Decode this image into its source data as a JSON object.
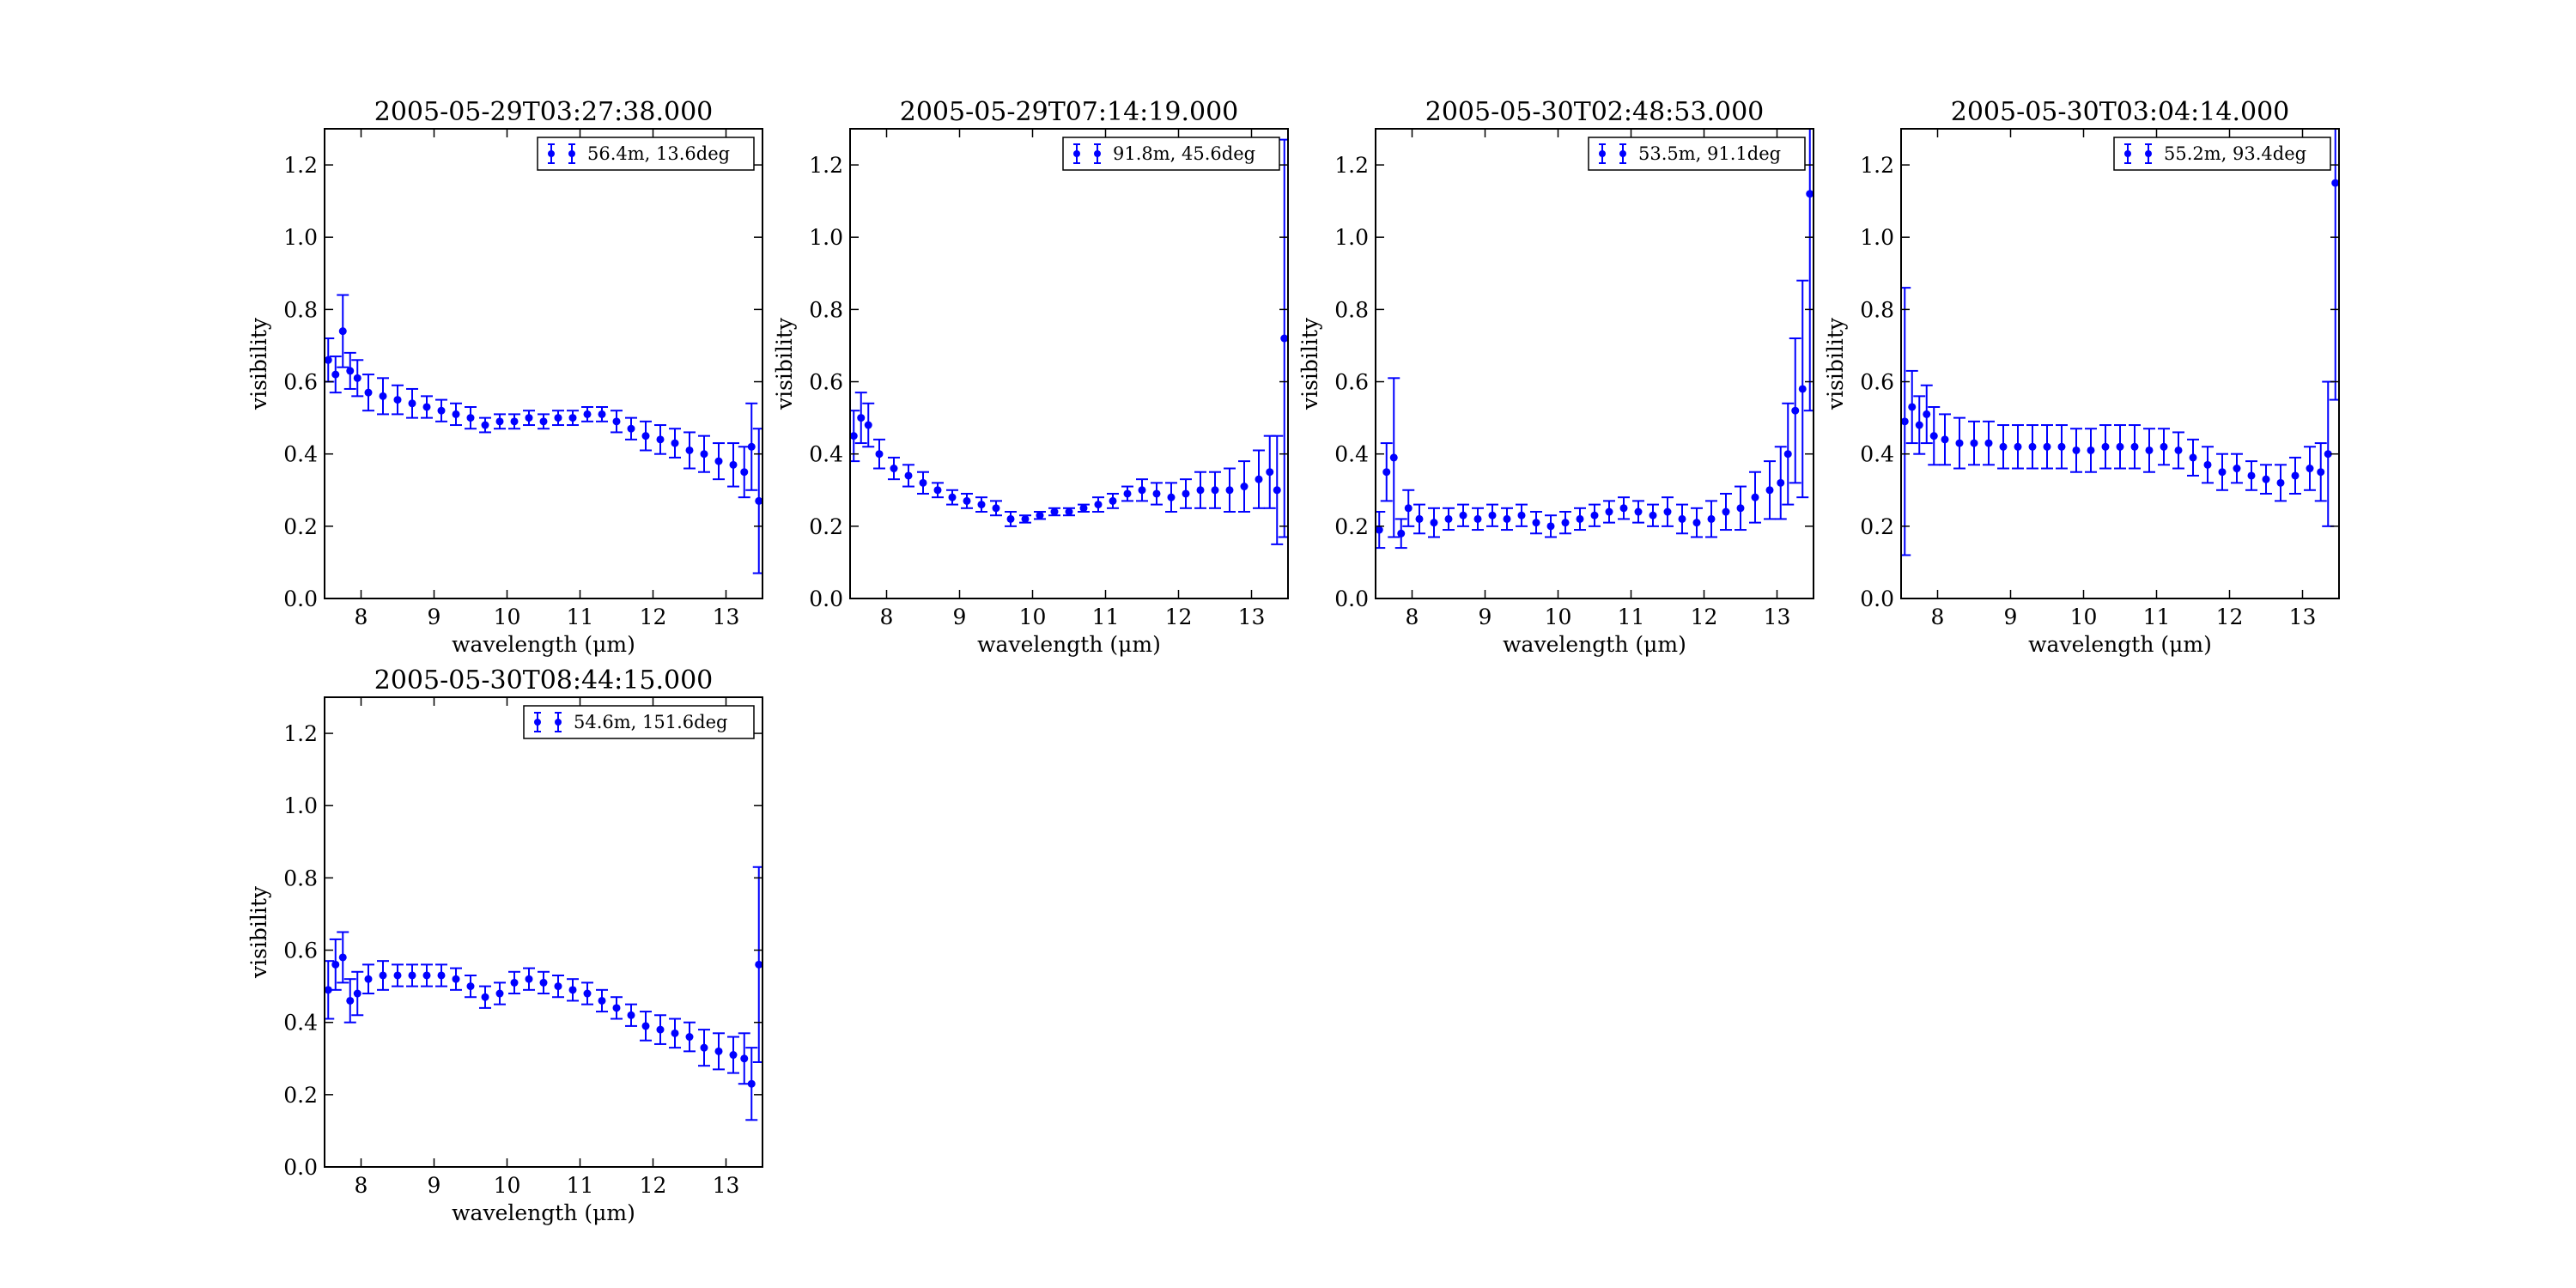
{
  "figure": {
    "series_color": "#0000ff"
  },
  "chart_data": [
    {
      "type": "scatter",
      "title": "2005-05-29T03:27:38.000",
      "xlabel": "wavelength (μm)",
      "ylabel": "visibility",
      "xlim": [
        7.5,
        13.5
      ],
      "ylim": [
        0.0,
        1.3
      ],
      "xticks": [
        "8",
        "9",
        "10",
        "11",
        "12",
        "13"
      ],
      "yticks": [
        "0.0",
        "0.2",
        "0.4",
        "0.6",
        "0.8",
        "1.0",
        "1.2"
      ],
      "grid": false,
      "legend": "top-right",
      "series": [
        {
          "name": "56.4m, 13.6deg",
          "x": [
            7.55,
            7.65,
            7.75,
            7.85,
            7.95,
            8.1,
            8.3,
            8.5,
            8.7,
            8.9,
            9.1,
            9.3,
            9.5,
            9.7,
            9.9,
            10.1,
            10.3,
            10.5,
            10.7,
            10.9,
            11.1,
            11.3,
            11.5,
            11.7,
            11.9,
            12.1,
            12.3,
            12.5,
            12.7,
            12.9,
            13.1,
            13.25,
            13.35,
            13.45
          ],
          "y": [
            0.66,
            0.62,
            0.74,
            0.63,
            0.61,
            0.57,
            0.56,
            0.55,
            0.54,
            0.53,
            0.52,
            0.51,
            0.5,
            0.48,
            0.49,
            0.49,
            0.5,
            0.49,
            0.5,
            0.5,
            0.51,
            0.51,
            0.49,
            0.47,
            0.45,
            0.44,
            0.43,
            0.41,
            0.4,
            0.38,
            0.37,
            0.35,
            0.42,
            0.27
          ],
          "yerr": [
            0.06,
            0.05,
            0.1,
            0.05,
            0.05,
            0.05,
            0.05,
            0.04,
            0.04,
            0.03,
            0.03,
            0.03,
            0.03,
            0.02,
            0.02,
            0.02,
            0.02,
            0.02,
            0.02,
            0.02,
            0.02,
            0.02,
            0.03,
            0.03,
            0.04,
            0.04,
            0.04,
            0.05,
            0.05,
            0.05,
            0.06,
            0.07,
            0.12,
            0.2
          ]
        }
      ]
    },
    {
      "type": "scatter",
      "title": "2005-05-29T07:14:19.000",
      "xlabel": "wavelength (μm)",
      "ylabel": "visibility",
      "xlim": [
        7.5,
        13.5
      ],
      "ylim": [
        0.0,
        1.3
      ],
      "xticks": [
        "8",
        "9",
        "10",
        "11",
        "12",
        "13"
      ],
      "yticks": [
        "0.0",
        "0.2",
        "0.4",
        "0.6",
        "0.8",
        "1.0",
        "1.2"
      ],
      "grid": false,
      "legend": "top-right",
      "series": [
        {
          "name": "91.8m, 45.6deg",
          "x": [
            7.55,
            7.65,
            7.75,
            7.9,
            8.1,
            8.3,
            8.5,
            8.7,
            8.9,
            9.1,
            9.3,
            9.5,
            9.7,
            9.9,
            10.1,
            10.3,
            10.5,
            10.7,
            10.9,
            11.1,
            11.3,
            11.5,
            11.7,
            11.9,
            12.1,
            12.3,
            12.5,
            12.7,
            12.9,
            13.1,
            13.25,
            13.35,
            13.45
          ],
          "y": [
            0.45,
            0.5,
            0.48,
            0.4,
            0.36,
            0.34,
            0.32,
            0.3,
            0.28,
            0.27,
            0.26,
            0.25,
            0.22,
            0.22,
            0.23,
            0.24,
            0.24,
            0.25,
            0.26,
            0.27,
            0.29,
            0.3,
            0.29,
            0.28,
            0.29,
            0.3,
            0.3,
            0.3,
            0.31,
            0.33,
            0.35,
            0.3,
            0.72
          ],
          "yerr": [
            0.07,
            0.07,
            0.06,
            0.04,
            0.03,
            0.03,
            0.03,
            0.02,
            0.02,
            0.02,
            0.02,
            0.02,
            0.02,
            0.01,
            0.01,
            0.01,
            0.01,
            0.01,
            0.02,
            0.02,
            0.02,
            0.03,
            0.03,
            0.04,
            0.04,
            0.05,
            0.05,
            0.06,
            0.07,
            0.08,
            0.1,
            0.15,
            0.55
          ]
        }
      ]
    },
    {
      "type": "scatter",
      "title": "2005-05-30T02:48:53.000",
      "xlabel": "wavelength (μm)",
      "ylabel": "visibility",
      "xlim": [
        7.5,
        13.5
      ],
      "ylim": [
        0.0,
        1.3
      ],
      "xticks": [
        "8",
        "9",
        "10",
        "11",
        "12",
        "13"
      ],
      "yticks": [
        "0.0",
        "0.2",
        "0.4",
        "0.6",
        "0.8",
        "1.0",
        "1.2"
      ],
      "grid": false,
      "legend": "top-right",
      "series": [
        {
          "name": "53.5m, 91.1deg",
          "x": [
            7.55,
            7.65,
            7.75,
            7.85,
            7.95,
            8.1,
            8.3,
            8.5,
            8.7,
            8.9,
            9.1,
            9.3,
            9.5,
            9.7,
            9.9,
            10.1,
            10.3,
            10.5,
            10.7,
            10.9,
            11.1,
            11.3,
            11.5,
            11.7,
            11.9,
            12.1,
            12.3,
            12.5,
            12.7,
            12.9,
            13.05,
            13.15,
            13.25,
            13.35,
            13.45
          ],
          "y": [
            0.19,
            0.35,
            0.39,
            0.18,
            0.25,
            0.22,
            0.21,
            0.22,
            0.23,
            0.22,
            0.23,
            0.22,
            0.23,
            0.21,
            0.2,
            0.21,
            0.22,
            0.23,
            0.24,
            0.25,
            0.24,
            0.23,
            0.24,
            0.22,
            0.21,
            0.22,
            0.24,
            0.25,
            0.28,
            0.3,
            0.32,
            0.4,
            0.52,
            0.58,
            1.12
          ],
          "yerr": [
            0.05,
            0.08,
            0.22,
            0.04,
            0.05,
            0.04,
            0.04,
            0.03,
            0.03,
            0.03,
            0.03,
            0.03,
            0.03,
            0.03,
            0.03,
            0.03,
            0.03,
            0.03,
            0.03,
            0.03,
            0.03,
            0.03,
            0.04,
            0.04,
            0.04,
            0.05,
            0.05,
            0.06,
            0.07,
            0.08,
            0.1,
            0.14,
            0.2,
            0.3,
            0.6
          ]
        }
      ]
    },
    {
      "type": "scatter",
      "title": "2005-05-30T03:04:14.000",
      "xlabel": "wavelength (μm)",
      "ylabel": "visibility",
      "xlim": [
        7.5,
        13.5
      ],
      "ylim": [
        0.0,
        1.3
      ],
      "xticks": [
        "8",
        "9",
        "10",
        "11",
        "12",
        "13"
      ],
      "yticks": [
        "0.0",
        "0.2",
        "0.4",
        "0.6",
        "0.8",
        "1.0",
        "1.2"
      ],
      "grid": false,
      "legend": "top-right",
      "series": [
        {
          "name": "55.2m, 93.4deg",
          "x": [
            7.55,
            7.65,
            7.75,
            7.85,
            7.95,
            8.1,
            8.3,
            8.5,
            8.7,
            8.9,
            9.1,
            9.3,
            9.5,
            9.7,
            9.9,
            10.1,
            10.3,
            10.5,
            10.7,
            10.9,
            11.1,
            11.3,
            11.5,
            11.7,
            11.9,
            12.1,
            12.3,
            12.5,
            12.7,
            12.9,
            13.1,
            13.25,
            13.35,
            13.45
          ],
          "y": [
            0.49,
            0.53,
            0.48,
            0.51,
            0.45,
            0.44,
            0.43,
            0.43,
            0.43,
            0.42,
            0.42,
            0.42,
            0.42,
            0.42,
            0.41,
            0.41,
            0.42,
            0.42,
            0.42,
            0.41,
            0.42,
            0.41,
            0.39,
            0.37,
            0.35,
            0.36,
            0.34,
            0.33,
            0.32,
            0.34,
            0.36,
            0.35,
            0.4,
            1.15
          ],
          "yerr": [
            0.37,
            0.1,
            0.08,
            0.08,
            0.08,
            0.07,
            0.07,
            0.06,
            0.06,
            0.06,
            0.06,
            0.06,
            0.06,
            0.06,
            0.06,
            0.06,
            0.06,
            0.06,
            0.06,
            0.06,
            0.05,
            0.05,
            0.05,
            0.05,
            0.05,
            0.04,
            0.04,
            0.04,
            0.05,
            0.05,
            0.06,
            0.08,
            0.2,
            0.6
          ]
        }
      ]
    },
    {
      "type": "scatter",
      "title": "2005-05-30T08:44:15.000",
      "xlabel": "wavelength (μm)",
      "ylabel": "visibility",
      "xlim": [
        7.5,
        13.5
      ],
      "ylim": [
        0.0,
        1.3
      ],
      "xticks": [
        "8",
        "9",
        "10",
        "11",
        "12",
        "13"
      ],
      "yticks": [
        "0.0",
        "0.2",
        "0.4",
        "0.6",
        "0.8",
        "1.0",
        "1.2"
      ],
      "grid": false,
      "legend": "top-right",
      "series": [
        {
          "name": "54.6m, 151.6deg",
          "x": [
            7.55,
            7.65,
            7.75,
            7.85,
            7.95,
            8.1,
            8.3,
            8.5,
            8.7,
            8.9,
            9.1,
            9.3,
            9.5,
            9.7,
            9.9,
            10.1,
            10.3,
            10.5,
            10.7,
            10.9,
            11.1,
            11.3,
            11.5,
            11.7,
            11.9,
            12.1,
            12.3,
            12.5,
            12.7,
            12.9,
            13.1,
            13.25,
            13.35,
            13.45
          ],
          "y": [
            0.49,
            0.56,
            0.58,
            0.46,
            0.48,
            0.52,
            0.53,
            0.53,
            0.53,
            0.53,
            0.53,
            0.52,
            0.5,
            0.47,
            0.48,
            0.51,
            0.52,
            0.51,
            0.5,
            0.49,
            0.48,
            0.46,
            0.44,
            0.42,
            0.39,
            0.38,
            0.37,
            0.36,
            0.33,
            0.32,
            0.31,
            0.3,
            0.23,
            0.56
          ],
          "yerr": [
            0.08,
            0.07,
            0.07,
            0.06,
            0.06,
            0.04,
            0.04,
            0.03,
            0.03,
            0.03,
            0.03,
            0.03,
            0.03,
            0.03,
            0.03,
            0.03,
            0.03,
            0.03,
            0.03,
            0.03,
            0.03,
            0.03,
            0.03,
            0.03,
            0.04,
            0.04,
            0.04,
            0.04,
            0.05,
            0.05,
            0.05,
            0.07,
            0.1,
            0.27
          ]
        }
      ]
    }
  ]
}
